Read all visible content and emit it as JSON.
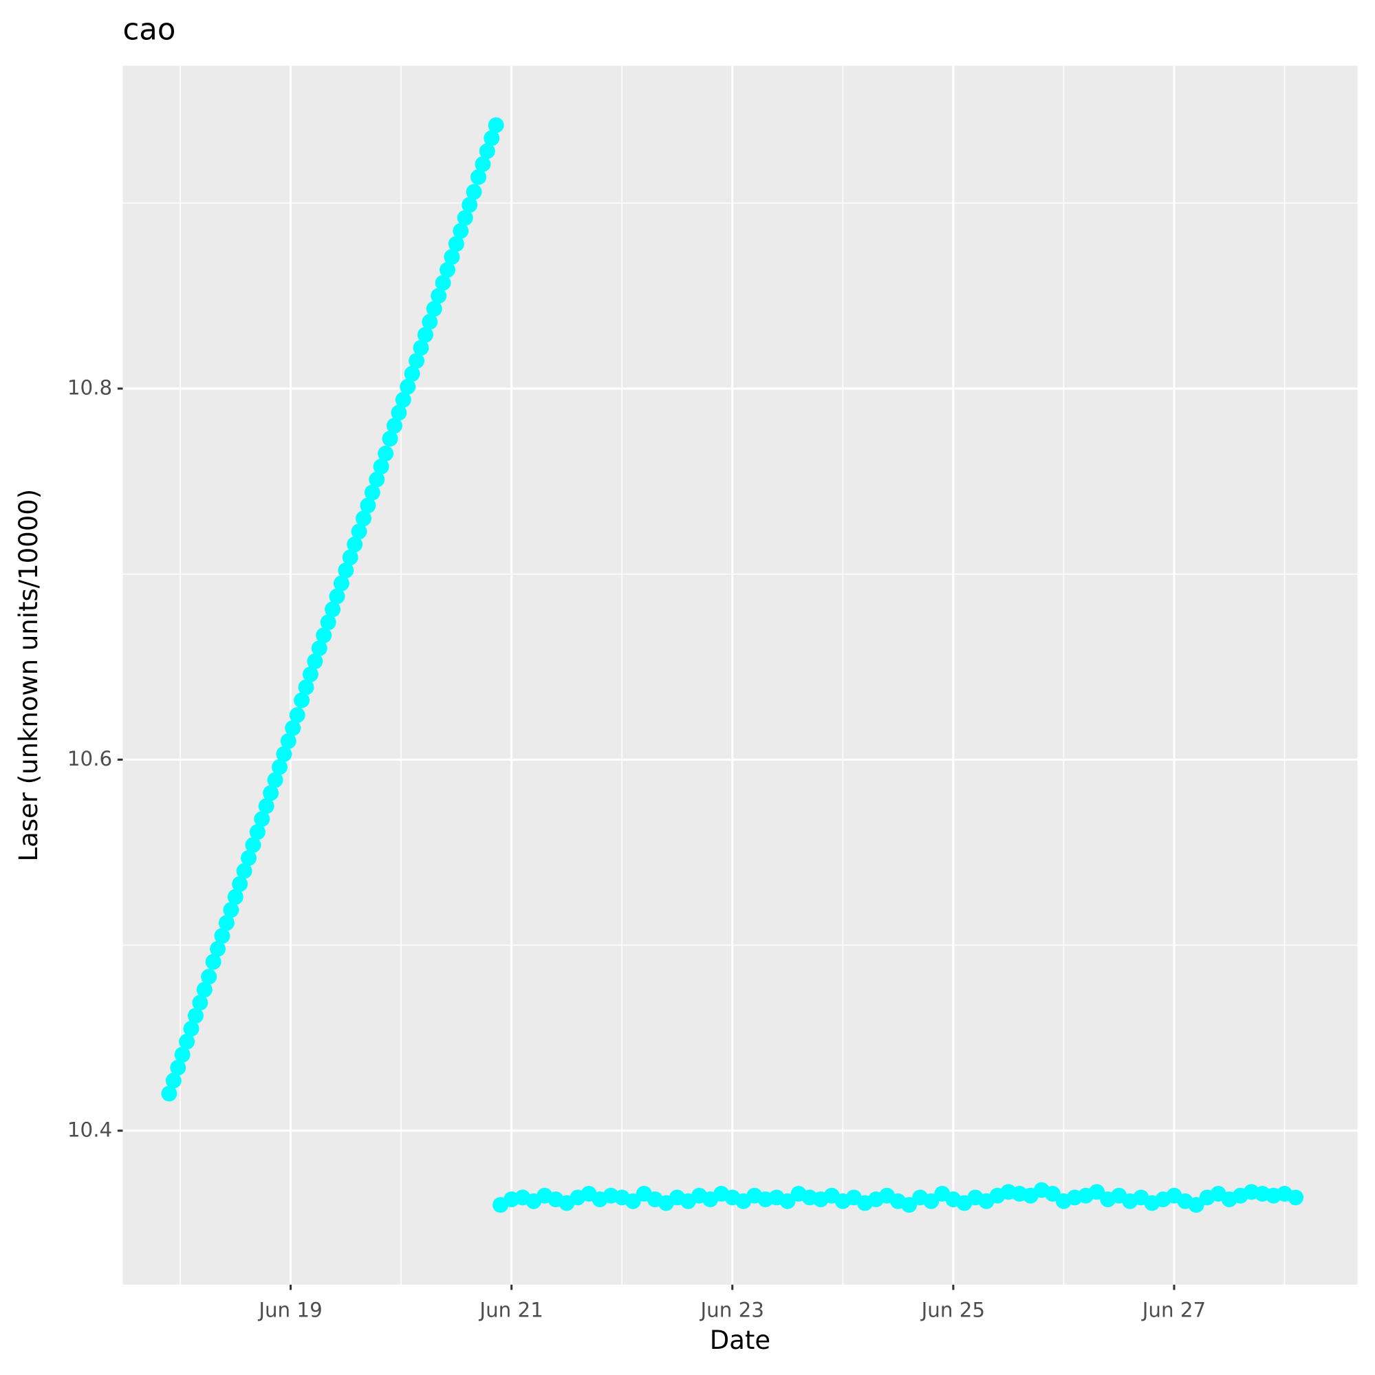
{
  "chart_data": {
    "type": "scatter",
    "title": "cao",
    "x_label": "Date",
    "y_label": "Laser (unknown units/10000)",
    "xlim": [
      17.48,
      28.66
    ],
    "ylim": [
      10.317,
      10.974
    ],
    "xticks": [
      {
        "value": 19,
        "label": "Jun 19"
      },
      {
        "value": 21,
        "label": "Jun 21"
      },
      {
        "value": 23,
        "label": "Jun 23"
      },
      {
        "value": 25,
        "label": "Jun 25"
      },
      {
        "value": 27,
        "label": "Jun 27"
      }
    ],
    "yticks": [
      10.4,
      10.6,
      10.8
    ],
    "grid": true,
    "series": [
      {
        "color": "#00ffff",
        "x": [
          17.9,
          17.94,
          17.98,
          18.02,
          18.06,
          18.1,
          18.14,
          18.18,
          18.22,
          18.26,
          18.3,
          18.34,
          18.38,
          18.42,
          18.46,
          18.5,
          18.54,
          18.58,
          18.62,
          18.66,
          18.7,
          18.74,
          18.78,
          18.82,
          18.86,
          18.9,
          18.94,
          18.98,
          19.02,
          19.06,
          19.1,
          19.14,
          19.18,
          19.22,
          19.26,
          19.3,
          19.34,
          19.38,
          19.42,
          19.46,
          19.5,
          19.54,
          19.58,
          19.62,
          19.66,
          19.7,
          19.74,
          19.78,
          19.82,
          19.86,
          19.9,
          19.94,
          19.98,
          20.02,
          20.06,
          20.1,
          20.14,
          20.18,
          20.22,
          20.26,
          20.3,
          20.34,
          20.38,
          20.42,
          20.46,
          20.5,
          20.54,
          20.58,
          20.62,
          20.66,
          20.7,
          20.74,
          20.78,
          20.82,
          20.86,
          20.9,
          21.0,
          21.1,
          21.2,
          21.3,
          21.4,
          21.5,
          21.6,
          21.7,
          21.8,
          21.9,
          22.0,
          22.1,
          22.2,
          22.3,
          22.4,
          22.5,
          22.6,
          22.7,
          22.8,
          22.9,
          23.0,
          23.1,
          23.2,
          23.3,
          23.4,
          23.5,
          23.6,
          23.7,
          23.8,
          23.9,
          24.0,
          24.1,
          24.2,
          24.3,
          24.4,
          24.5,
          24.6,
          24.7,
          24.8,
          24.9,
          25.0,
          25.1,
          25.2,
          25.3,
          25.4,
          25.5,
          25.6,
          25.7,
          25.8,
          25.9,
          26.0,
          26.1,
          26.2,
          26.3,
          26.4,
          26.5,
          26.6,
          26.7,
          26.8,
          26.9,
          27.0,
          27.1,
          27.2,
          27.3,
          27.4,
          27.5,
          27.6,
          27.7,
          27.8,
          27.9,
          28.0,
          28.1
        ],
        "values": [
          10.42,
          10.427,
          10.434,
          10.441,
          10.448,
          10.455,
          10.462,
          10.469,
          10.476,
          10.483,
          10.491,
          10.498,
          10.505,
          10.512,
          10.519,
          10.526,
          10.533,
          10.54,
          10.547,
          10.554,
          10.561,
          10.568,
          10.575,
          10.582,
          10.589,
          10.596,
          10.603,
          10.61,
          10.617,
          10.624,
          10.632,
          10.639,
          10.646,
          10.653,
          10.66,
          10.667,
          10.674,
          10.681,
          10.688,
          10.695,
          10.702,
          10.709,
          10.716,
          10.723,
          10.73,
          10.737,
          10.744,
          10.751,
          10.758,
          10.765,
          10.773,
          10.78,
          10.787,
          10.794,
          10.801,
          10.808,
          10.815,
          10.822,
          10.829,
          10.836,
          10.843,
          10.85,
          10.857,
          10.864,
          10.871,
          10.878,
          10.885,
          10.892,
          10.899,
          10.906,
          10.914,
          10.921,
          10.928,
          10.935,
          10.942,
          10.36,
          10.363,
          10.364,
          10.362,
          10.365,
          10.363,
          10.361,
          10.364,
          10.366,
          10.363,
          10.365,
          10.364,
          10.362,
          10.366,
          10.363,
          10.361,
          10.364,
          10.362,
          10.365,
          10.363,
          10.366,
          10.364,
          10.362,
          10.365,
          10.363,
          10.364,
          10.362,
          10.366,
          10.364,
          10.363,
          10.365,
          10.362,
          10.364,
          10.361,
          10.363,
          10.365,
          10.362,
          10.36,
          10.364,
          10.362,
          10.366,
          10.363,
          10.361,
          10.364,
          10.362,
          10.365,
          10.367,
          10.366,
          10.365,
          10.368,
          10.366,
          10.362,
          10.364,
          10.365,
          10.367,
          10.363,
          10.365,
          10.362,
          10.364,
          10.361,
          10.363,
          10.365,
          10.362,
          10.36,
          10.364,
          10.366,
          10.363,
          10.365,
          10.367,
          10.366,
          10.365,
          10.366,
          10.364
        ]
      }
    ]
  }
}
